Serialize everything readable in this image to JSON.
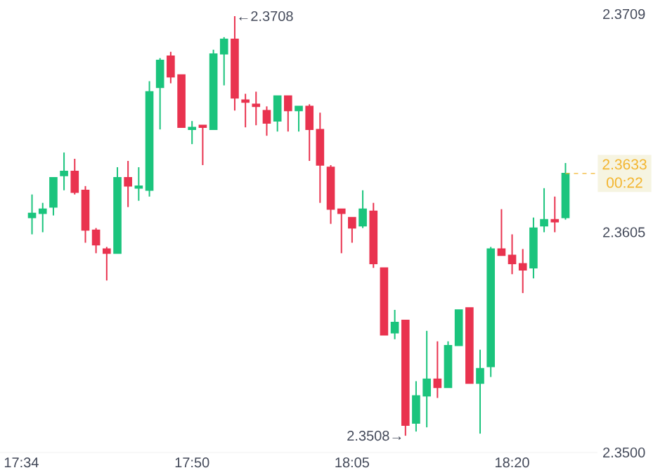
{
  "chart_data": {
    "type": "candlestick",
    "x": [
      17.5833,
      17.6,
      17.6167,
      17.6333,
      17.65,
      17.6667,
      17.6833,
      17.7,
      17.7167,
      17.7333,
      17.75,
      17.7667,
      17.7833,
      17.8,
      17.8167,
      17.8333,
      17.85,
      17.8667,
      17.8833,
      17.9,
      17.9167,
      17.9333,
      17.95,
      17.9667,
      17.9833,
      18.0,
      18.0167,
      18.0333,
      18.05,
      18.0667,
      18.0833,
      18.1,
      18.1167,
      18.1333,
      18.15,
      18.1667,
      18.1833,
      18.2,
      18.2167,
      18.2333,
      18.25,
      18.2667,
      18.2833,
      18.3,
      18.3167,
      18.3333,
      18.35,
      18.3667,
      18.3833,
      18.4,
      18.4167
    ],
    "xlim": [
      17.5333,
      18.4667
    ],
    "ohlc": [
      [
        2.3612,
        2.3623,
        2.3604,
        2.3614
      ],
      [
        2.3614,
        2.3619,
        2.3605,
        2.3616
      ],
      [
        2.3617,
        2.3631,
        2.3613,
        2.3631
      ],
      [
        2.3632,
        2.3643,
        2.3625,
        2.3634
      ],
      [
        2.3634,
        2.364,
        2.3623,
        2.3624
      ],
      [
        2.3625,
        2.3627,
        2.36,
        2.3606
      ],
      [
        2.3606,
        2.3607,
        2.3595,
        2.3599
      ],
      [
        2.3597,
        2.3598,
        2.3582,
        2.3595
      ],
      [
        2.3595,
        2.3636,
        2.3595,
        2.3631
      ],
      [
        2.3631,
        2.3639,
        2.3617,
        2.3627
      ],
      [
        2.3626,
        2.3636,
        2.362,
        2.3627
      ],
      [
        2.3625,
        2.3677,
        2.3622,
        2.3672
      ],
      [
        2.3674,
        2.3688,
        2.3654,
        2.3687
      ],
      [
        2.3689,
        2.3691,
        2.3676,
        2.3679
      ],
      [
        2.368,
        2.368,
        2.3655,
        2.3655
      ],
      [
        2.3654,
        2.3658,
        2.3647,
        2.3655
      ],
      [
        2.3656,
        2.3656,
        2.3637,
        2.3655
      ],
      [
        2.3654,
        2.3692,
        2.3654,
        2.369
      ],
      [
        2.369,
        2.3698,
        2.3675,
        2.3697
      ],
      [
        2.3697,
        2.3708,
        2.3663,
        2.3669
      ],
      [
        2.3668,
        2.3671,
        2.3655,
        2.3667
      ],
      [
        2.3666,
        2.3672,
        2.3656,
        2.3665
      ],
      [
        2.3663,
        2.3665,
        2.3651,
        2.3657
      ],
      [
        2.3658,
        2.367,
        2.3653,
        2.367
      ],
      [
        2.367,
        2.367,
        2.3653,
        2.3663
      ],
      [
        2.3663,
        2.3665,
        2.3653,
        2.3665
      ],
      [
        2.3665,
        2.3666,
        2.3639,
        2.3654
      ],
      [
        2.3654,
        2.3662,
        2.3619,
        2.3637
      ],
      [
        2.3636,
        2.3637,
        2.3609,
        2.3616
      ],
      [
        2.3616,
        2.3616,
        2.3595,
        2.3614
      ],
      [
        2.3612,
        2.3612,
        2.36,
        2.3607
      ],
      [
        2.3608,
        2.3625,
        2.3607,
        2.3616
      ],
      [
        2.3615,
        2.3619,
        2.3588,
        2.359
      ],
      [
        2.3588,
        2.3588,
        2.3556,
        2.3556
      ],
      [
        2.3557,
        2.3568,
        2.3554,
        2.3562
      ],
      [
        2.3563,
        2.3563,
        2.3508,
        2.3513
      ],
      [
        2.3514,
        2.3534,
        2.351,
        2.3527
      ],
      [
        2.3527,
        2.3558,
        2.3512,
        2.3535
      ],
      [
        2.3535,
        2.3553,
        2.3526,
        2.3531
      ],
      [
        2.3531,
        2.3553,
        2.3531,
        2.3551
      ],
      [
        2.3551,
        2.3568,
        2.3551,
        2.3568
      ],
      [
        2.3569,
        2.3569,
        2.3533,
        2.3533
      ],
      [
        2.3533,
        2.3549,
        2.3509,
        2.354
      ],
      [
        2.3541,
        2.3598,
        2.3536,
        2.3597
      ],
      [
        2.3597,
        2.3616,
        2.3594,
        2.3594
      ],
      [
        2.3594,
        2.3604,
        2.3585,
        2.359
      ],
      [
        2.359,
        2.3597,
        2.3576,
        2.3587
      ],
      [
        2.3588,
        2.3612,
        2.3583,
        2.3607
      ],
      [
        2.3608,
        2.3626,
        2.3605,
        2.3611
      ],
      [
        2.3611,
        2.3622,
        2.3605,
        2.361
      ],
      [
        2.3612,
        2.3638,
        2.3611,
        2.3633
      ]
    ],
    "colors": [
      "#1bc47d",
      "#1bc47d",
      "#1bc47d",
      "#1bc47d",
      "#e9334f",
      "#e9334f",
      "#e9334f",
      "#e9334f",
      "#1bc47d",
      "#e9334f",
      "#1bc47d",
      "#1bc47d",
      "#1bc47d",
      "#e9334f",
      "#e9334f",
      "#1bc47d",
      "#e9334f",
      "#1bc47d",
      "#1bc47d",
      "#e9334f",
      "#e9334f",
      "#e9334f",
      "#e9334f",
      "#1bc47d",
      "#e9334f",
      "#1bc47d",
      "#e9334f",
      "#e9334f",
      "#e9334f",
      "#e9334f",
      "#e9334f",
      "#1bc47d",
      "#e9334f",
      "#e9334f",
      "#1bc47d",
      "#e9334f",
      "#1bc47d",
      "#1bc47d",
      "#e9334f",
      "#1bc47d",
      "#1bc47d",
      "#e9334f",
      "#1bc47d",
      "#1bc47d",
      "#e9334f",
      "#e9334f",
      "#e9334f",
      "#1bc47d",
      "#1bc47d",
      "#e9334f",
      "#1bc47d"
    ],
    "xticks": [
      {
        "value": 17.5667,
        "label": "17:34"
      },
      {
        "value": 17.8333,
        "label": "17:50"
      },
      {
        "value": 18.0833,
        "label": "18:05"
      },
      {
        "value": 18.3333,
        "label": "18:20"
      }
    ],
    "ylim": [
      2.35,
      2.3709
    ],
    "yticks": [
      {
        "value": 2.35,
        "label": "2.3500"
      },
      2.3605,
      2.3709
    ],
    "ref_lines": [
      {
        "axis": "y",
        "value": 2.3633,
        "label": "2.3633",
        "color": "#f3b52f",
        "line_style": "dashed"
      }
    ],
    "annotations": [
      "00:22",
      {
        "text": "←2.3708",
        "x": 17.9,
        "y": 2.3708
      },
      {
        "text": "2.3508→",
        "x": 18.1667,
        "y": 2.3508
      }
    ]
  }
}
